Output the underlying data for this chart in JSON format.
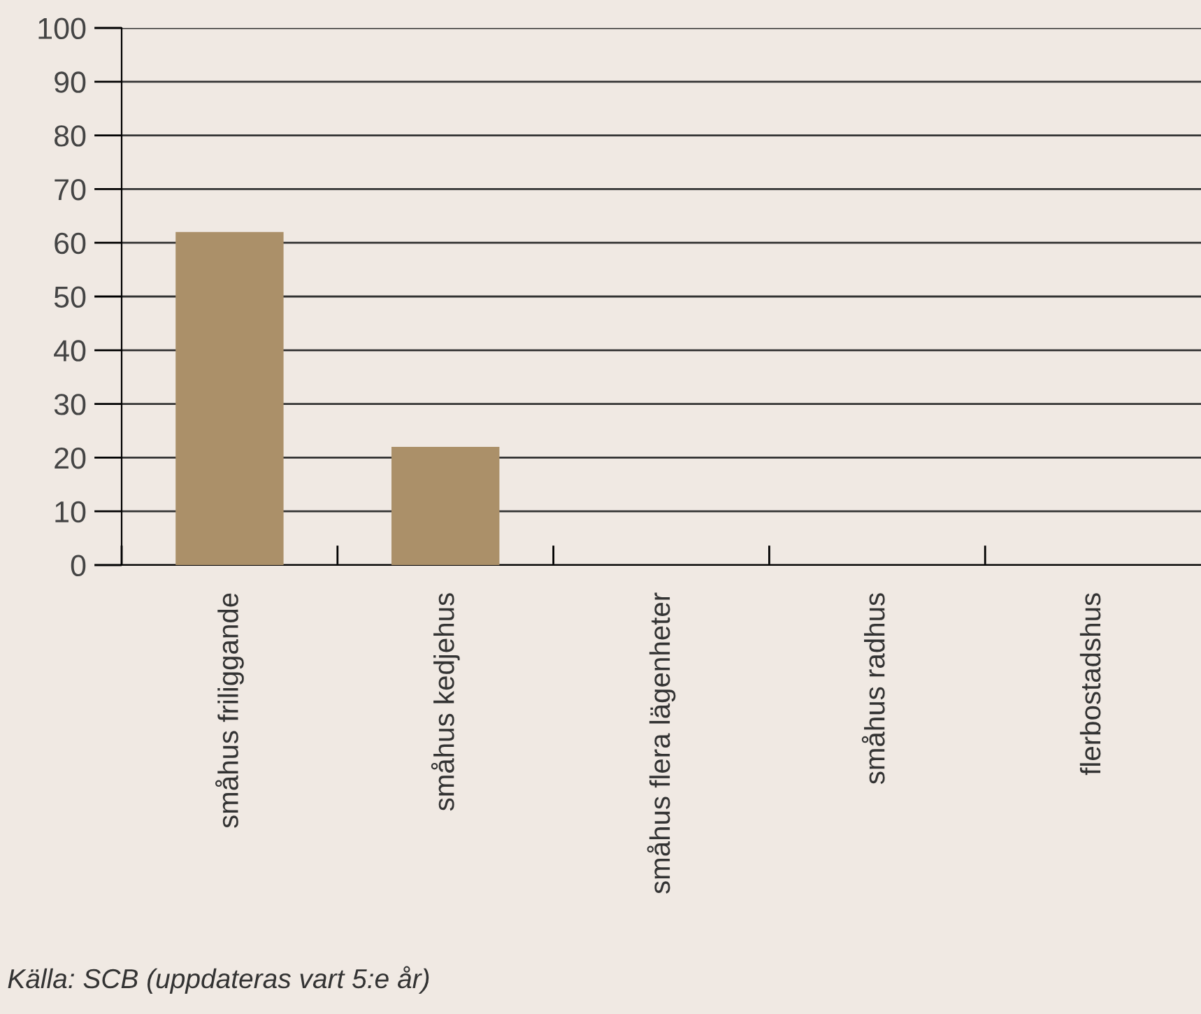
{
  "chart_data": {
    "type": "bar",
    "categories": [
      "småhus friliggande",
      "småhus kedjehus",
      "småhus flera lägenheter",
      "småhus radhus",
      "flerbostadshus"
    ],
    "values": [
      62,
      22,
      0,
      0,
      0
    ],
    "color": "#ab9069",
    "ylim": [
      0,
      100
    ],
    "yticks": [
      0,
      10,
      20,
      30,
      40,
      50,
      60,
      70,
      80,
      90,
      100
    ],
    "grid": "y",
    "annotations": [
      "Källa: SCB (uppdateras vart 5:e år)"
    ]
  }
}
